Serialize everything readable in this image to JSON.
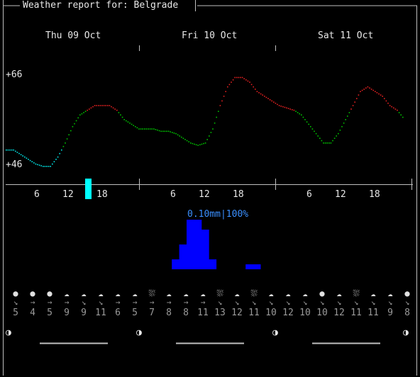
{
  "window": {
    "title": "Weather report for: Belgrade"
  },
  "days": [
    "Thu 09 Oct",
    "Fri 10 Oct",
    "Sat 11 Oct"
  ],
  "temperature": {
    "max_label": "+66",
    "min_label": "+46"
  },
  "hour_labels": [
    "6",
    "12",
    "18",
    "6",
    "12",
    "18",
    "6",
    "12",
    "18"
  ],
  "precipitation": {
    "label": "0.10mm|100%"
  },
  "forecast": {
    "icons": [
      "full-moon-icon",
      "full-moon-icon",
      "full-moon-icon",
      "cloud-icon",
      "cloud-icon",
      "cloud-icon",
      "cloud-icon",
      "cloud-icon",
      "rain-cloud-icon",
      "cloud-icon",
      "cloud-icon",
      "cloud-icon",
      "rain-cloud-icon",
      "cloud-icon",
      "rain-cloud-icon",
      "cloud-icon",
      "cloud-icon",
      "cloud-icon",
      "full-moon-icon",
      "cloud-icon",
      "rain-cloud-icon",
      "cloud-icon",
      "cloud-icon",
      "full-moon-icon"
    ],
    "wind_dirs": [
      "↘",
      "→",
      "→",
      "→",
      "↘",
      "↘",
      "→",
      "→",
      "→",
      "→",
      "→",
      "→",
      "↘",
      "↘",
      "↘",
      "↘",
      "↘",
      "↘",
      "↘",
      "↘",
      "↘",
      "↘",
      "↘",
      "↘"
    ],
    "wind_speeds": [
      "5",
      "4",
      "5",
      "9",
      "9",
      "11",
      "6",
      "5",
      "7",
      "8",
      "8",
      "11",
      "13",
      "12",
      "11",
      "10",
      "12",
      "10",
      "10",
      "12",
      "11",
      "11",
      "9",
      "8"
    ]
  },
  "moon_glyph": "◑",
  "chart_data": {
    "type": "line",
    "title": "",
    "ylim": [
      46,
      66
    ],
    "series": [
      {
        "name": "",
        "values": [
          49.5,
          49.5,
          48.5,
          47.5,
          46.5,
          46,
          46,
          48,
          51,
          54.5,
          57,
          58,
          59,
          59,
          59,
          58,
          56,
          55,
          54,
          54,
          54,
          53.5,
          53.5,
          53,
          52,
          51,
          50.5,
          51,
          54,
          59,
          63,
          65,
          65,
          64,
          62,
          61,
          60,
          59,
          58.5,
          58,
          57,
          55,
          53,
          51,
          51,
          53,
          56,
          59,
          62,
          63,
          62,
          61,
          59,
          58,
          56
        ]
      },
      {
        "name": "",
        "values": [
          0,
          0,
          0,
          0,
          0,
          0,
          0,
          0,
          0,
          0,
          0,
          0,
          0,
          0,
          0,
          0,
          0,
          0,
          0,
          0,
          0,
          0,
          0,
          0.02,
          0.05,
          0.1,
          0.1,
          0.08,
          0.02,
          0,
          0,
          0,
          0,
          0.01,
          0.01,
          0,
          0,
          0,
          0,
          0,
          0,
          0,
          0,
          0,
          0,
          0,
          0,
          0,
          0,
          0,
          0,
          0,
          0,
          0,
          0
        ]
      }
    ],
    "precip_max_mm": 0.1
  }
}
